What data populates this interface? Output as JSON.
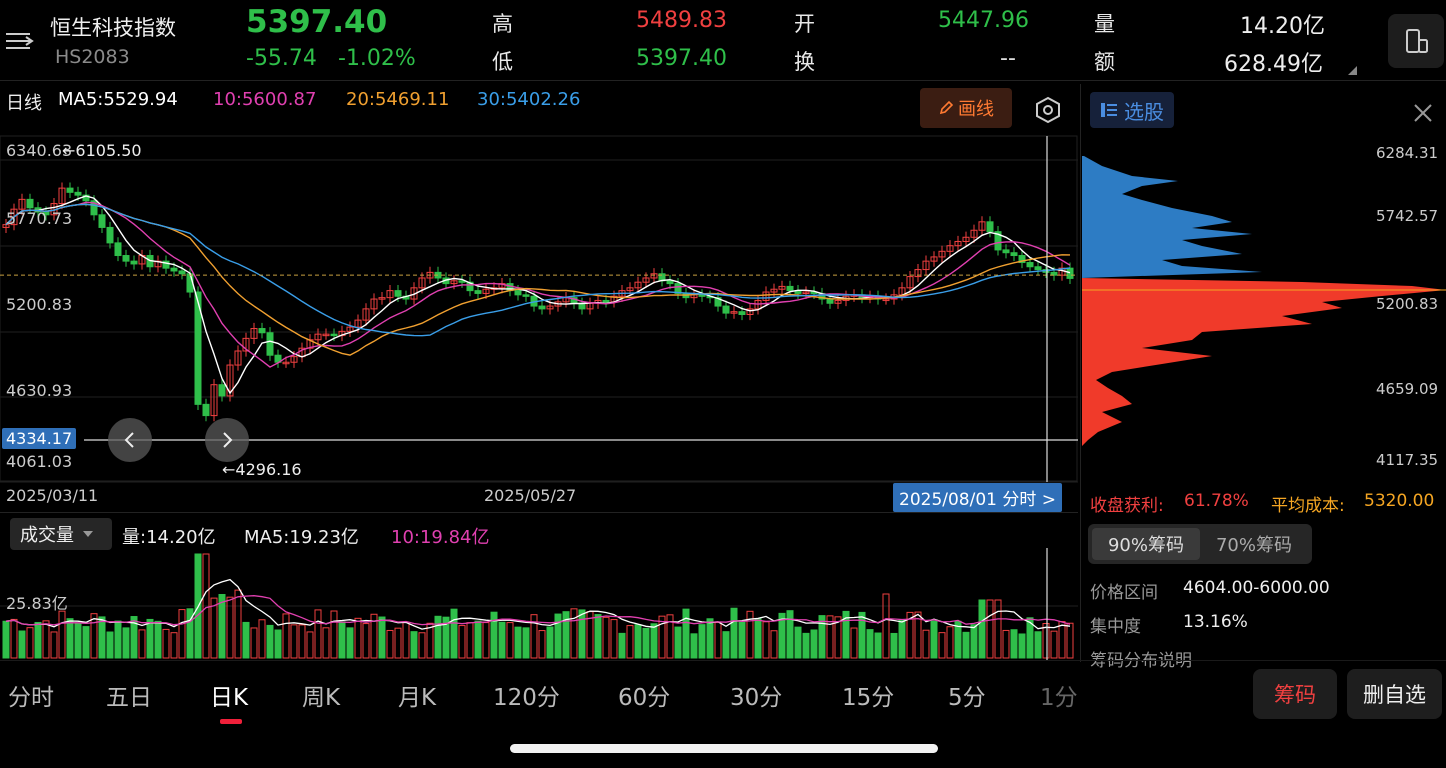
{
  "header": {
    "name": "恒生科技指数",
    "code": "HS2083",
    "price": "5397.40",
    "change": "-55.74",
    "change_pct": "-1.02%",
    "high_label": "高",
    "high": "5489.83",
    "low_label": "低",
    "low": "5397.40",
    "open_label": "开",
    "open": "5447.96",
    "turn_label": "换",
    "turn": "--",
    "vol_label": "量",
    "vol": "14.20亿",
    "amt_label": "额",
    "amt": "628.49亿"
  },
  "ma_bar": {
    "period": "日线",
    "ma5": "MA5:5529.94",
    "ma10": "10:5600.87",
    "ma20": "20:5469.11",
    "ma30": "30:5402.26",
    "draw_button": "画线"
  },
  "price_axis": {
    "top": "6340.63",
    "upper": "5770.73",
    "mid": "5200.83",
    "lower": "4630.93",
    "bottom": "4061.03",
    "crosshair_value": "4334.17",
    "max_marker": "←6105.50",
    "min_marker": "←4296.16"
  },
  "date_axis": {
    "start": "2025/03/11",
    "mid": "2025/05/27",
    "cursor": "2025/08/01 分时 >"
  },
  "volume": {
    "label": "成交量",
    "vol": "量:14.20亿",
    "ma5": "MA5:19.23亿",
    "ma10": "10:19.84亿",
    "axis_top": "25.83亿"
  },
  "chip_panel": {
    "title": "选股",
    "levels": [
      "6284.31",
      "5742.57",
      "5200.83",
      "4659.09",
      "4117.35"
    ],
    "profit_label": "收盘获利:",
    "profit_value": "61.78%",
    "avg_label": "平均成本:",
    "avg_value": "5320.00",
    "tab_90": "90%筹码",
    "tab_70": "70%筹码",
    "range_label": "价格区间",
    "range_value": "4604.00-6000.00",
    "conc_label": "集中度",
    "conc_value": "13.16%",
    "explain": "筹码分布说明"
  },
  "period_tabs": [
    "分时",
    "五日",
    "日K",
    "周K",
    "月K",
    "120分",
    "60分",
    "30分",
    "15分",
    "5分",
    "1分"
  ],
  "active_tab": "日K",
  "bottom_buttons": {
    "chips": "筹码",
    "remove": "删自选"
  },
  "colors": {
    "up": "#f04040",
    "down": "#2fbf4a",
    "ma5": "#ffffff",
    "ma10": "#e040b0",
    "ma20": "#f0a030",
    "ma30": "#3a9ee8",
    "accent": "#ff7a32"
  }
}
